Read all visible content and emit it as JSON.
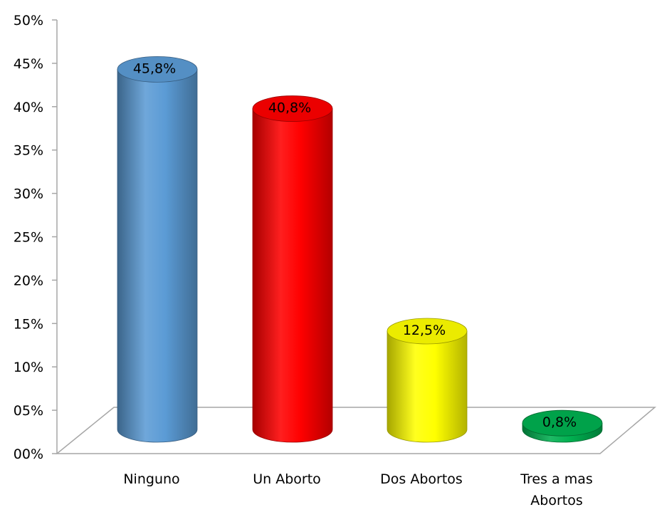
{
  "chart_data": {
    "type": "bar",
    "categories": [
      "Ninguno",
      "Un Aborto",
      "Dos Abortos",
      "Tres a mas Abortos"
    ],
    "category_lines": [
      [
        "Ninguno"
      ],
      [
        "Un Aborto"
      ],
      [
        "Dos Abortos"
      ],
      [
        "Tres a mas",
        "Abortos"
      ]
    ],
    "values": [
      45.8,
      40.8,
      12.5,
      0.8
    ],
    "data_labels": [
      "45,8%",
      "40,8%",
      "12,5%",
      "0,8%"
    ],
    "y_ticks": [
      "00%",
      "05%",
      "10%",
      "15%",
      "20%",
      "25%",
      "30%",
      "35%",
      "40%",
      "45%",
      "50%"
    ],
    "ylim": [
      0,
      50
    ],
    "grid": false,
    "bar_shape": "cylinder",
    "colors": [
      "#5B9BD5",
      "#FF0000",
      "#FFFF00",
      "#00B050"
    ],
    "title": "",
    "xlabel": "",
    "ylabel": ""
  }
}
